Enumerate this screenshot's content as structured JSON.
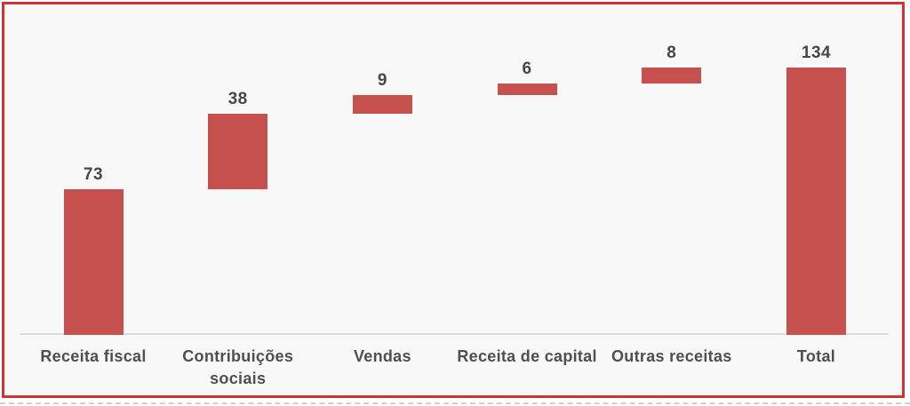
{
  "chart_data": {
    "type": "bar",
    "subtype": "waterfall",
    "title": "",
    "xlabel": "",
    "ylabel": "",
    "categories": [
      "Receita fiscal",
      "Contribuições sociais",
      "Vendas",
      "Receita de capital",
      "Outras receitas",
      "Total"
    ],
    "values": [
      73,
      38,
      9,
      6,
      8,
      134
    ],
    "data_labels": [
      "73",
      "38",
      "9",
      "6",
      "8",
      "134"
    ],
    "cumulative_start": [
      0,
      73,
      111,
      120,
      126,
      0
    ],
    "cumulative_end": [
      73,
      111,
      120,
      126,
      134,
      134
    ],
    "is_total": [
      false,
      false,
      false,
      false,
      false,
      true
    ],
    "ylim": [
      0,
      134
    ],
    "y_axis_visible": false,
    "grid": false,
    "legend": false,
    "colors": {
      "bar": "#c5504e",
      "frame_border": "#cd3434",
      "panel_background": "#f8f8f8",
      "axis_line": "#dcdcdc",
      "value_label_text": "#474747",
      "category_label_text": "#4f4f4f",
      "bottom_dashed_line": "#cfcfcf"
    }
  }
}
